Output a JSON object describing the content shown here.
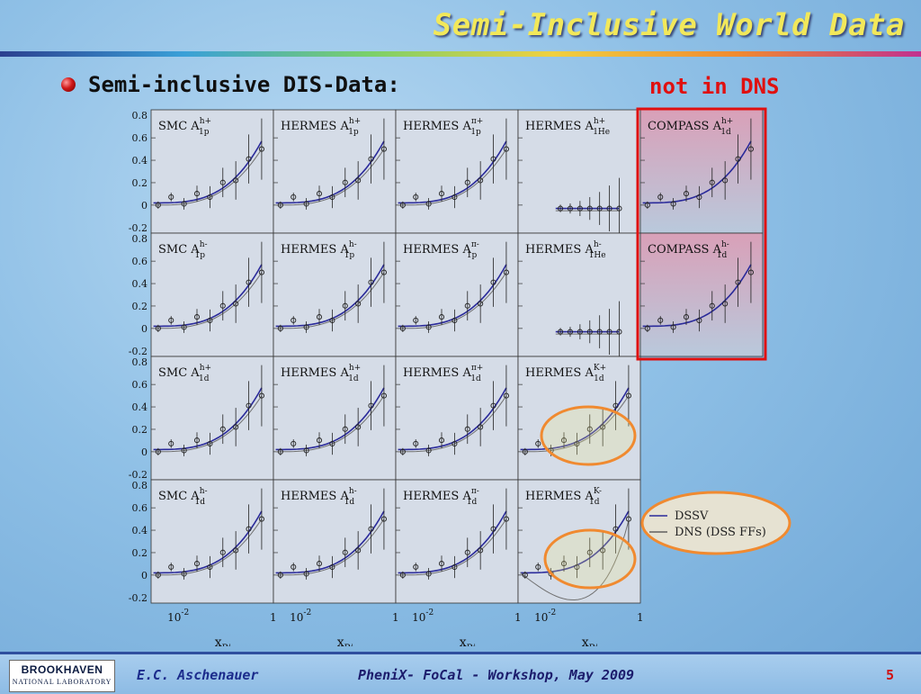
{
  "slide": {
    "title": "Semi-Inclusive World Data",
    "bullet": "Semi-inclusive DIS-Data:",
    "annotation": "not in DNS",
    "annotation_color": "#e01010"
  },
  "figure": {
    "y_ticks": [
      "0.8",
      "0.6",
      "0.4",
      "0.2",
      "0",
      "-0.2"
    ],
    "x_tick_base": "10",
    "x_tick_exp": "-2",
    "x_tick_one": "1",
    "x_label_main": "x",
    "x_label_sub": "Bj",
    "panels": [
      {
        "row": 0,
        "col": 0,
        "exp": "SMC",
        "asym": "A",
        "sup": "h+",
        "sub": "1p"
      },
      {
        "row": 0,
        "col": 1,
        "exp": "HERMES",
        "asym": "A",
        "sup": "h+",
        "sub": "1p"
      },
      {
        "row": 0,
        "col": 2,
        "exp": "HERMES",
        "asym": "A",
        "sup": "π+",
        "sub": "1p"
      },
      {
        "row": 0,
        "col": 3,
        "exp": "HERMES",
        "asym": "A",
        "sup": "h+",
        "sub": "1He"
      },
      {
        "row": 0,
        "col": 4,
        "exp": "COMPASS",
        "asym": "A",
        "sup": "h+",
        "sub": "1d"
      },
      {
        "row": 1,
        "col": 0,
        "exp": "SMC",
        "asym": "A",
        "sup": "h-",
        "sub": "1p"
      },
      {
        "row": 1,
        "col": 1,
        "exp": "HERMES",
        "asym": "A",
        "sup": "h-",
        "sub": "1p"
      },
      {
        "row": 1,
        "col": 2,
        "exp": "HERMES",
        "asym": "A",
        "sup": "π-",
        "sub": "1p"
      },
      {
        "row": 1,
        "col": 3,
        "exp": "HERMES",
        "asym": "A",
        "sup": "h-",
        "sub": "1He"
      },
      {
        "row": 1,
        "col": 4,
        "exp": "COMPASS",
        "asym": "A",
        "sup": "h-",
        "sub": "1d"
      },
      {
        "row": 2,
        "col": 0,
        "exp": "SMC",
        "asym": "A",
        "sup": "h+",
        "sub": "1d"
      },
      {
        "row": 2,
        "col": 1,
        "exp": "HERMES",
        "asym": "A",
        "sup": "h+",
        "sub": "1d"
      },
      {
        "row": 2,
        "col": 2,
        "exp": "HERMES",
        "asym": "A",
        "sup": "π+",
        "sub": "1d"
      },
      {
        "row": 2,
        "col": 3,
        "exp": "HERMES",
        "asym": "A",
        "sup": "K+",
        "sub": "1d"
      },
      {
        "row": 3,
        "col": 0,
        "exp": "SMC",
        "asym": "A",
        "sup": "h-",
        "sub": "1d"
      },
      {
        "row": 3,
        "col": 1,
        "exp": "HERMES",
        "asym": "A",
        "sup": "h-",
        "sub": "1d"
      },
      {
        "row": 3,
        "col": 2,
        "exp": "HERMES",
        "asym": "A",
        "sup": "π-",
        "sub": "1d"
      },
      {
        "row": 3,
        "col": 3,
        "exp": "HERMES",
        "asym": "A",
        "sup": "K-",
        "sub": "1d"
      }
    ],
    "legend": [
      {
        "label": "DSSV",
        "color": "#2a2a9a"
      },
      {
        "label": "DNS (DSS FFs)",
        "color": "#606060"
      }
    ],
    "colors": {
      "highlight_box": "#e01010",
      "circle": "#f08a30",
      "dssv_curve": "#2a2a9a",
      "dns_curve": "#707070"
    }
  },
  "footer": {
    "logo_top": "BROOKHAVEN",
    "logo_bottom": "NATIONAL LABORATORY",
    "author": "E.C. Aschenauer",
    "event": "PheniX- FoCal - Workshop, May 2009",
    "page": "5"
  }
}
